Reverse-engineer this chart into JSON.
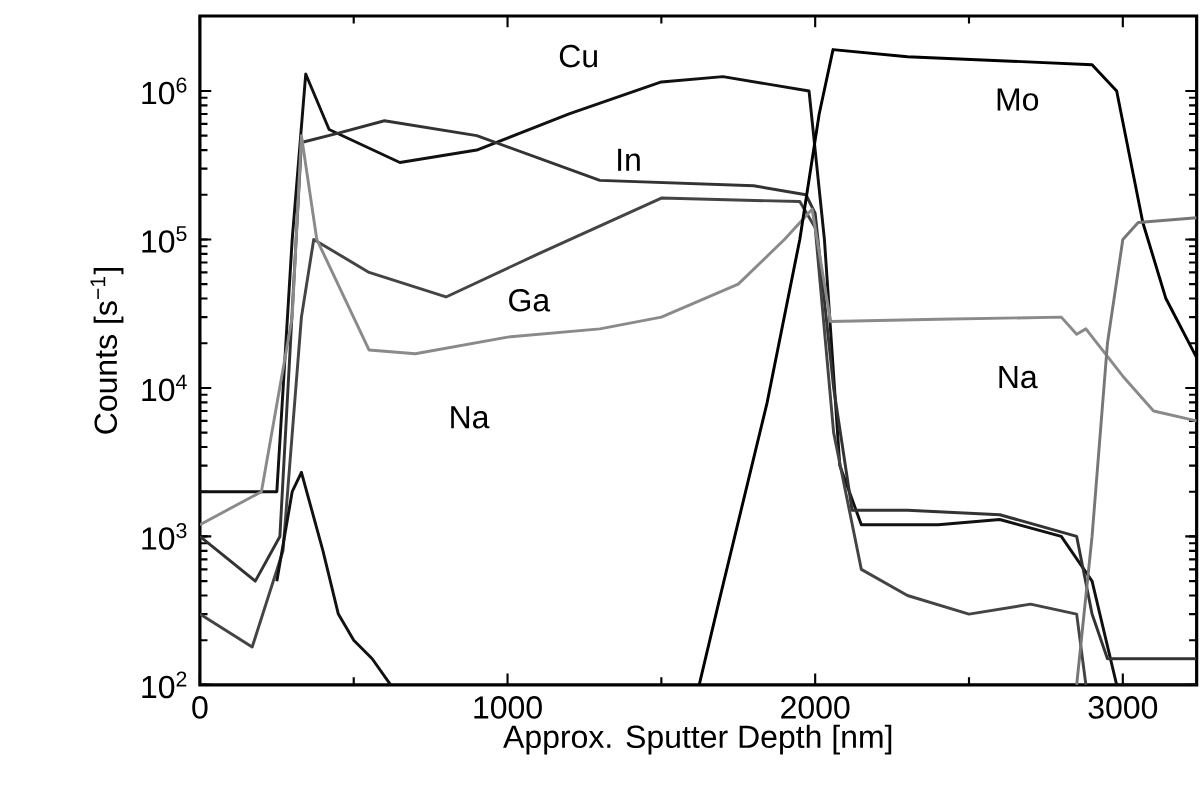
{
  "chart_data": {
    "type": "line",
    "xlabel": "Approx. Sputter Depth [nm]",
    "ylabel": "Counts [s$^{−1}$]",
    "log": "y",
    "grid": false,
    "marker": "none",
    "line_style": "solid",
    "xlim": [
      0,
      3240
    ],
    "ylim": [
      100,
      3200000
    ],
    "xticks": [
      0,
      1000,
      2000,
      3000
    ],
    "yticks": [
      {
        "value": 100,
        "label": "10$^{2}$"
      },
      {
        "value": 1000,
        "label": "10$^{3}$"
      },
      {
        "value": 10000,
        "label": "10$^{4}$"
      },
      {
        "value": 100000,
        "label": "10$^{5}$"
      },
      {
        "value": 1000000,
        "label": "10$^{6}$"
      }
    ],
    "series": [
      {
        "name": "Cu",
        "color": "#111111",
        "x": [
          0,
          250,
          300,
          344,
          420,
          650,
          900,
          1200,
          1500,
          1700,
          1980,
          2030,
          2080,
          2150,
          2400,
          2600,
          2800,
          2900,
          2980,
          3240
        ],
        "values": [
          2000,
          2000,
          100000,
          1300000,
          550000,
          330000,
          400000,
          700000,
          1150000,
          1250000,
          1000000,
          100000,
          3000,
          1200,
          1200,
          1300,
          1000,
          500,
          100,
          100
        ]
      },
      {
        "name": "In",
        "color": "#333333",
        "x": [
          0,
          180,
          260,
          330,
          450,
          600,
          900,
          1300,
          1800,
          1970,
          2000,
          2060,
          2120,
          2300,
          2600,
          2850,
          2900,
          2950,
          3240
        ],
        "values": [
          1000,
          500,
          1000,
          450000,
          520000,
          630000,
          500000,
          250000,
          230000,
          200000,
          150000,
          10000,
          1500,
          1500,
          1400,
          1000,
          300,
          150,
          150
        ]
      },
      {
        "name": "Ga",
        "color": "#444444",
        "x": [
          0,
          170,
          270,
          330,
          370,
          550,
          800,
          1100,
          1500,
          1950,
          2000,
          2060,
          2150,
          2300,
          2500,
          2700,
          2850,
          2880
        ],
        "values": [
          300,
          180,
          800,
          30000,
          100000,
          60000,
          41000,
          80000,
          190000,
          180000,
          120000,
          5000,
          600,
          400,
          300,
          350,
          300,
          100
        ]
      },
      {
        "name": "Na",
        "color": "#8a8a8a",
        "x": [
          0,
          200,
          300,
          330,
          380,
          550,
          700,
          1000,
          1300,
          1500,
          1750,
          1900,
          1990,
          2050,
          2400,
          2800,
          2850,
          2880,
          3000,
          3100,
          3240
        ],
        "values": [
          1200,
          2000,
          30000,
          500000,
          100000,
          18000,
          17000,
          22000,
          25000,
          30000,
          50000,
          100000,
          160000,
          28000,
          29000,
          30000,
          23000,
          25000,
          12000,
          7000,
          6000
        ]
      },
      {
        "name": "Mo",
        "color": "#000000",
        "x": [
          1623,
          1688,
          1844,
          1950,
          2013,
          2058,
          2300,
          2600,
          2900,
          2980,
          3065,
          3140,
          3240
        ],
        "values": [
          100,
          370,
          8000,
          100000,
          700000,
          1900000,
          1700000,
          1600000,
          1500000,
          1000000,
          130000,
          40000,
          16000
        ]
      },
      {
        "color": "#777777",
        "x": [
          2850,
          2900,
          2950,
          3000,
          3050,
          3240
        ],
        "values": [
          100,
          1000,
          20000,
          100000,
          130000,
          140000
        ]
      },
      {
        "color": "#111111",
        "x": [
          250,
          300,
          330,
          400,
          450,
          500,
          560,
          620
        ],
        "values": [
          500,
          2000,
          2700,
          800,
          300,
          200,
          150,
          100
        ]
      }
    ]
  }
}
